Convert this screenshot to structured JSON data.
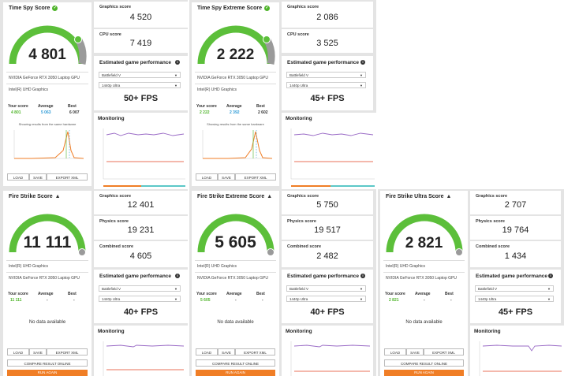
{
  "benchmarks": [
    {
      "title": "Time Spy Score",
      "title_badge": "check",
      "score": "4 801",
      "gpu_lines": [
        "NVIDIA GeForce RTX 3050 Laptop GPU",
        "Intel(R) UHD Graphics"
      ],
      "compare": {
        "your_label": "Your score",
        "avg_label": "Average",
        "best_label": "Best",
        "your": "4 801",
        "avg": "5 063",
        "best": "6 007"
      },
      "histogram_note": "Showing results from the same hardware",
      "buttons": {
        "load": "LOAD",
        "save": "SAVE",
        "export": "EXPORT XML"
      },
      "subscores": [
        {
          "label": "Graphics score",
          "value": "4 520"
        },
        {
          "label": "CPU score",
          "value": "7 419"
        }
      ],
      "egp": {
        "title": "Estimated game performance",
        "game": "Battlefield V",
        "preset": "1440p Ultra",
        "fps": "50+ FPS"
      },
      "monitoring_title": "Monitoring"
    },
    {
      "title": "Time Spy Extreme Score",
      "title_badge": "check",
      "score": "2 222",
      "gpu_lines": [
        "NVIDIA GeForce RTX 3050 Laptop GPU",
        "Intel(R) UHD Graphics"
      ],
      "compare": {
        "your_label": "Your score",
        "avg_label": "Average",
        "best_label": "Best",
        "your": "2 222",
        "avg": "2 392",
        "best": "2 602"
      },
      "histogram_note": "Showing results from the same hardware",
      "buttons": {
        "load": "LOAD",
        "save": "SAVE",
        "export": "EXPORT XML"
      },
      "subscores": [
        {
          "label": "Graphics score",
          "value": "2 086"
        },
        {
          "label": "CPU score",
          "value": "3 525"
        }
      ],
      "egp": {
        "title": "Estimated game performance",
        "game": "Battlefield V",
        "preset": "1440p Ultra",
        "fps": "45+ FPS"
      },
      "monitoring_title": "Monitoring"
    },
    {
      "title": "Fire Strike Score",
      "title_badge": "warn",
      "score": "11 111",
      "gpu_lines": [
        "Intel(R) UHD Graphics",
        "NVIDIA GeForce RTX 3050 Laptop GPU"
      ],
      "compare": {
        "your_label": "Your score",
        "avg_label": "Average",
        "best_label": "Best",
        "your": "11 111",
        "avg": "-",
        "best": "-"
      },
      "no_data": "No data available",
      "buttons": {
        "load": "LOAD",
        "save": "SAVE",
        "export": "EXPORT XML",
        "compare": "COMPARE RESULT ONLINE",
        "run": "RUN AGAIN"
      },
      "subscores": [
        {
          "label": "Graphics score",
          "value": "12 401"
        },
        {
          "label": "Physics score",
          "value": "19 231"
        },
        {
          "label": "Combined score",
          "value": "4 605"
        }
      ],
      "egp": {
        "title": "Estimated game performance",
        "game": "Battlefield V",
        "preset": "1440p Ultra",
        "fps": "40+ FPS"
      },
      "monitoring_title": "Monitoring"
    },
    {
      "title": "Fire Strike Extreme Score",
      "title_badge": "warn",
      "score": "5 605",
      "gpu_lines": [
        "Intel(R) UHD Graphics",
        "NVIDIA GeForce RTX 3050 Laptop GPU"
      ],
      "compare": {
        "your_label": "Your score",
        "avg_label": "Average",
        "best_label": "Best",
        "your": "5 605",
        "avg": "-",
        "best": "-"
      },
      "no_data": "No data available",
      "buttons": {
        "load": "LOAD",
        "save": "SAVE",
        "export": "EXPORT XML",
        "compare": "COMPARE RESULT ONLINE",
        "run": "RUN AGAIN"
      },
      "subscores": [
        {
          "label": "Graphics score",
          "value": "5 750"
        },
        {
          "label": "Physics score",
          "value": "19 517"
        },
        {
          "label": "Combined score",
          "value": "2 482"
        }
      ],
      "egp": {
        "title": "Estimated game performance",
        "game": "Battlefield V",
        "preset": "1440p Ultra",
        "fps": "40+ FPS"
      },
      "monitoring_title": "Monitoring"
    },
    {
      "title": "Fire Strike Ultra Score",
      "title_badge": "warn",
      "score": "2 821",
      "gpu_lines": [
        "Intel(R) UHD Graphics",
        "NVIDIA GeForce RTX 3050 Laptop GPU"
      ],
      "compare": {
        "your_label": "Your score",
        "avg_label": "Average",
        "best_label": "Best",
        "your": "2 821",
        "avg": "-",
        "best": "-"
      },
      "no_data": "No data available",
      "buttons": {
        "load": "LOAD",
        "save": "SAVE",
        "export": "EXPORT XML",
        "compare": "COMPARE RESULT ONLINE",
        "run": "RUN AGAIN"
      },
      "subscores": [
        {
          "label": "Graphics score",
          "value": "2 707"
        },
        {
          "label": "Physics score",
          "value": "19 764"
        },
        {
          "label": "Combined score",
          "value": "1 434"
        }
      ],
      "egp": {
        "title": "Estimated game performance",
        "game": "Battlefield V",
        "preset": "1440p Ultra",
        "fps": "45+ FPS"
      },
      "monitoring_title": "Monitoring"
    }
  ],
  "colors": {
    "gauge_green": "#5cbf3a",
    "gauge_gray": "#9a9a9a",
    "your_score": "#4fb42a",
    "average": "#2e9bd6",
    "run_button": "#f07e26",
    "hist_line": "#f07e26",
    "mon_purple": "#9a6bc6",
    "mon_red": "#e8705a"
  }
}
